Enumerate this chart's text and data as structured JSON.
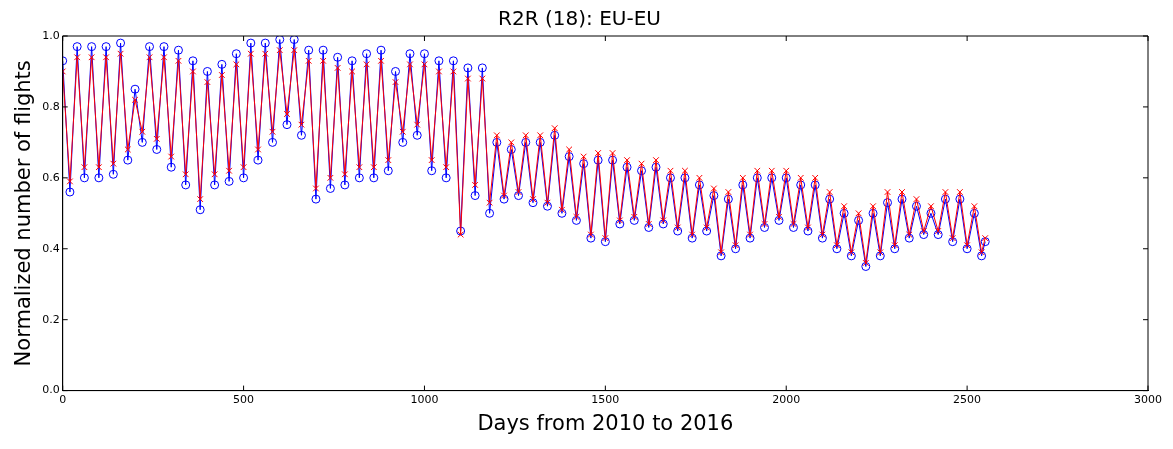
{
  "chart_data": {
    "type": "line",
    "title": "R2R (18): EU-EU",
    "xlabel": "Days from 2010 to 2016",
    "ylabel": "Normalized number of flights",
    "x": [
      0,
      20,
      40,
      60,
      80,
      100,
      120,
      140,
      160,
      180,
      200,
      220,
      240,
      260,
      280,
      300,
      320,
      340,
      360,
      380,
      400,
      420,
      440,
      460,
      480,
      500,
      520,
      540,
      560,
      580,
      600,
      620,
      640,
      660,
      680,
      700,
      720,
      740,
      760,
      780,
      800,
      820,
      840,
      860,
      880,
      900,
      920,
      940,
      960,
      980,
      1000,
      1020,
      1040,
      1060,
      1080,
      1100,
      1120,
      1140,
      1160,
      1180,
      1200,
      1220,
      1240,
      1260,
      1280,
      1300,
      1320,
      1340,
      1360,
      1380,
      1400,
      1420,
      1440,
      1460,
      1480,
      1500,
      1520,
      1540,
      1560,
      1580,
      1600,
      1620,
      1640,
      1660,
      1680,
      1700,
      1720,
      1740,
      1760,
      1780,
      1800,
      1820,
      1840,
      1860,
      1880,
      1900,
      1920,
      1940,
      1960,
      1980,
      2000,
      2020,
      2040,
      2060,
      2080,
      2100,
      2120,
      2140,
      2160,
      2180,
      2200,
      2220,
      2240,
      2260,
      2280,
      2300,
      2320,
      2340,
      2360,
      2380,
      2400,
      2420,
      2440,
      2460,
      2480,
      2500,
      2520,
      2540,
      2550
    ],
    "series": [
      {
        "color": "#0000ff",
        "marker": "circle",
        "values": [
          0.93,
          0.56,
          0.97,
          0.6,
          0.97,
          0.6,
          0.97,
          0.61,
          0.98,
          0.65,
          0.85,
          0.7,
          0.97,
          0.68,
          0.97,
          0.63,
          0.96,
          0.58,
          0.93,
          0.51,
          0.9,
          0.58,
          0.92,
          0.59,
          0.95,
          0.6,
          0.98,
          0.65,
          0.98,
          0.7,
          0.99,
          0.75,
          0.99,
          0.72,
          0.96,
          0.54,
          0.96,
          0.57,
          0.94,
          0.58,
          0.93,
          0.6,
          0.95,
          0.6,
          0.96,
          0.62,
          0.9,
          0.7,
          0.95,
          0.72,
          0.95,
          0.62,
          0.93,
          0.6,
          0.93,
          0.45,
          0.91,
          0.55,
          0.91,
          0.5,
          0.7,
          0.54,
          0.68,
          0.55,
          0.7,
          0.53,
          0.7,
          0.52,
          0.72,
          0.5,
          0.66,
          0.48,
          0.64,
          0.43,
          0.65,
          0.42,
          0.65,
          0.47,
          0.63,
          0.48,
          0.62,
          0.46,
          0.63,
          0.47,
          0.6,
          0.45,
          0.6,
          0.43,
          0.58,
          0.45,
          0.55,
          0.38,
          0.54,
          0.4,
          0.58,
          0.43,
          0.6,
          0.46,
          0.6,
          0.48,
          0.6,
          0.46,
          0.58,
          0.45,
          0.58,
          0.43,
          0.54,
          0.4,
          0.5,
          0.38,
          0.48,
          0.35,
          0.5,
          0.38,
          0.53,
          0.4,
          0.54,
          0.43,
          0.52,
          0.44,
          0.5,
          0.44,
          0.54,
          0.42,
          0.54,
          0.4,
          0.5,
          0.38,
          0.42
        ]
      },
      {
        "color": "#ff0000",
        "marker": "cross",
        "values": [
          0.9,
          0.59,
          0.94,
          0.63,
          0.94,
          0.63,
          0.94,
          0.64,
          0.95,
          0.68,
          0.82,
          0.73,
          0.94,
          0.71,
          0.94,
          0.66,
          0.93,
          0.61,
          0.9,
          0.54,
          0.87,
          0.61,
          0.89,
          0.62,
          0.92,
          0.63,
          0.95,
          0.68,
          0.95,
          0.73,
          0.96,
          0.78,
          0.96,
          0.75,
          0.93,
          0.57,
          0.93,
          0.6,
          0.91,
          0.61,
          0.9,
          0.63,
          0.92,
          0.63,
          0.93,
          0.65,
          0.87,
          0.73,
          0.92,
          0.75,
          0.92,
          0.65,
          0.9,
          0.63,
          0.9,
          0.44,
          0.88,
          0.58,
          0.88,
          0.53,
          0.72,
          0.55,
          0.7,
          0.56,
          0.72,
          0.54,
          0.72,
          0.53,
          0.74,
          0.51,
          0.68,
          0.49,
          0.66,
          0.44,
          0.67,
          0.43,
          0.67,
          0.48,
          0.65,
          0.49,
          0.64,
          0.47,
          0.65,
          0.48,
          0.62,
          0.46,
          0.62,
          0.44,
          0.6,
          0.46,
          0.57,
          0.39,
          0.56,
          0.41,
          0.6,
          0.44,
          0.62,
          0.47,
          0.62,
          0.49,
          0.62,
          0.47,
          0.6,
          0.46,
          0.6,
          0.44,
          0.56,
          0.41,
          0.52,
          0.39,
          0.5,
          0.36,
          0.52,
          0.39,
          0.56,
          0.41,
          0.56,
          0.44,
          0.54,
          0.45,
          0.52,
          0.45,
          0.56,
          0.43,
          0.56,
          0.41,
          0.52,
          0.39,
          0.43
        ]
      }
    ],
    "xlim": [
      0,
      3000
    ],
    "xticks": [
      0,
      500,
      1000,
      1500,
      2000,
      2500,
      3000
    ],
    "ylim": [
      0,
      1
    ],
    "yticks": [
      {
        "value": 0,
        "label": "0.0"
      },
      {
        "value": 0.2,
        "label": "0.2"
      },
      {
        "value": 0.4,
        "label": "0.4"
      },
      {
        "value": 0.6,
        "label": "0.6"
      },
      {
        "value": 0.8,
        "label": "0.8"
      },
      {
        "value": 1,
        "label": "1.0"
      }
    ],
    "line_style": "solid",
    "grid": false,
    "legend": false
  }
}
